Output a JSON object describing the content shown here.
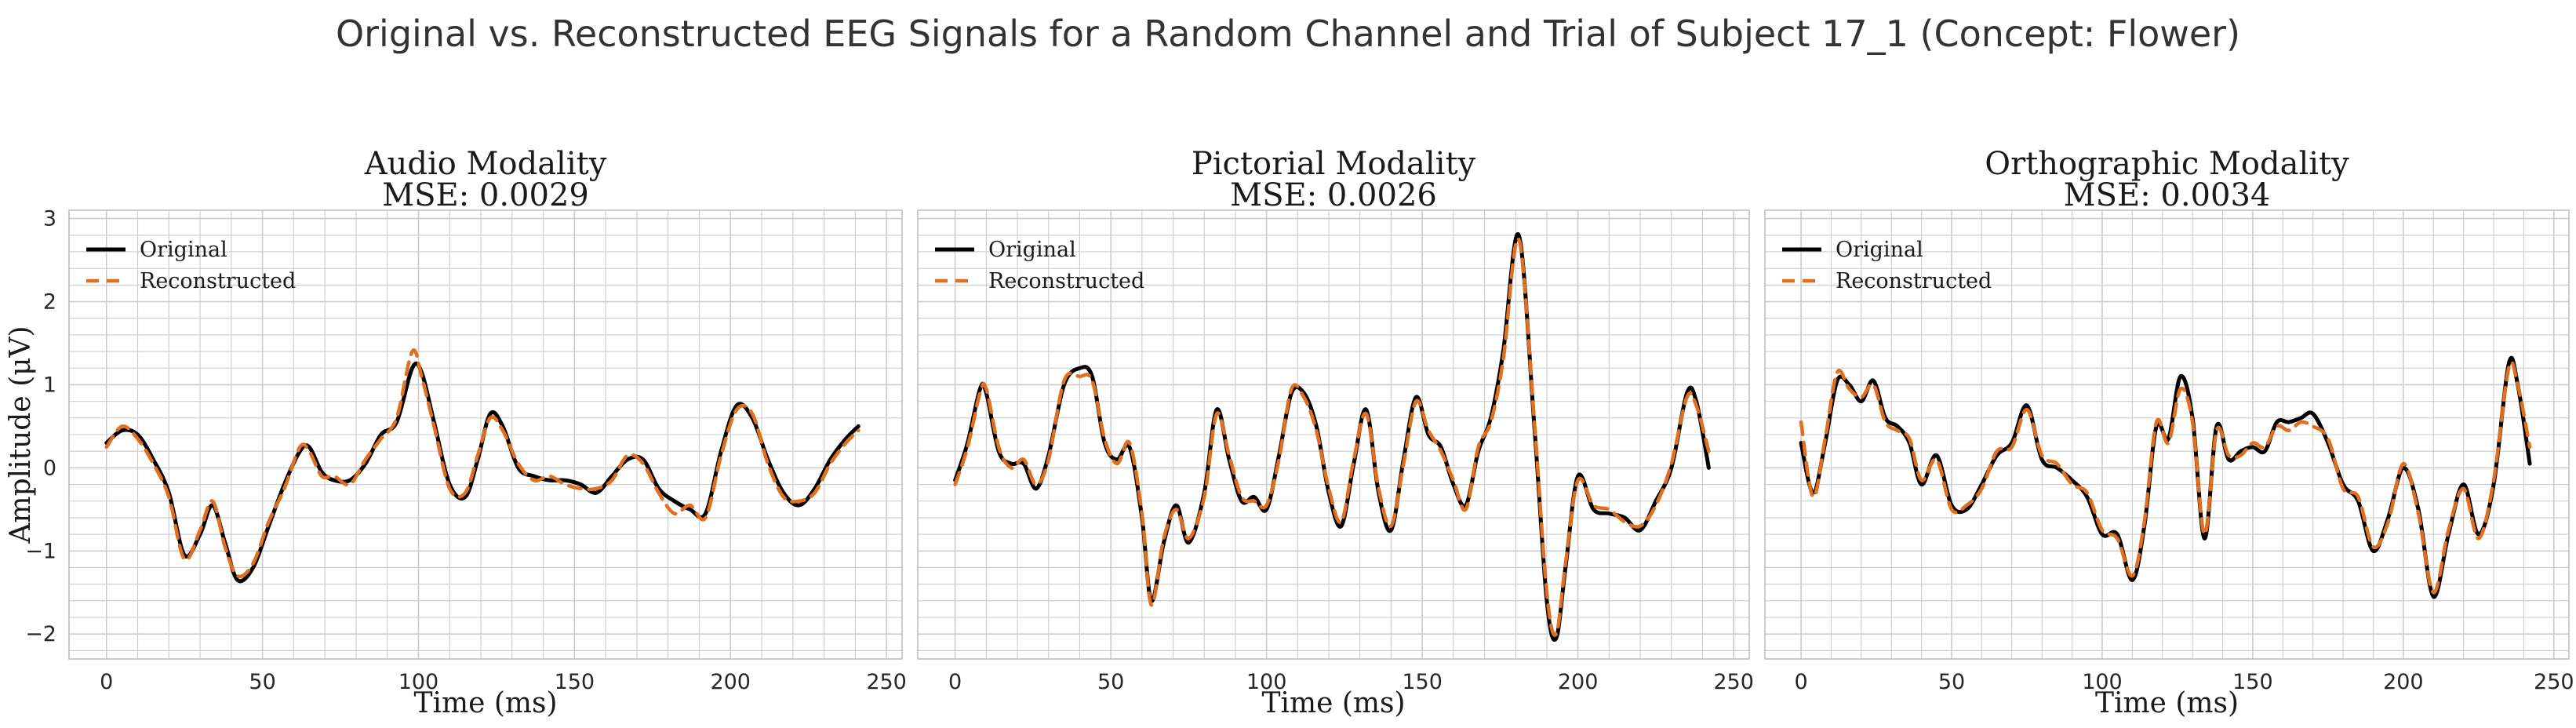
{
  "suptitle": "Original vs. Reconstructed EEG Signals for a Random Channel and Trial of Subject 17_1 (Concept: Flower)",
  "colors": {
    "original": "#000000",
    "reconstructed": "#E07020",
    "grid": "#cccccc",
    "spine": "#bbbbbb",
    "background": "#ffffff"
  },
  "chart_data": [
    {
      "type": "line",
      "title": "Audio Modality",
      "subtitle": "MSE: 0.0029",
      "xlabel": "Time (ms)",
      "ylabel": "Amplitude (μV)",
      "xlim": [
        -12,
        255
      ],
      "ylim": [
        -2.3,
        3.1
      ],
      "xticks": [
        0,
        50,
        100,
        150,
        200,
        250
      ],
      "yticks": [
        -2,
        -1,
        0,
        1,
        2,
        3
      ],
      "ytick_labels": [
        "−2",
        "−1",
        "0",
        "1",
        "2",
        "3"
      ],
      "grid": true,
      "legend": {
        "position": "upper-left",
        "entries": [
          "Original",
          "Reconstructed"
        ]
      },
      "x": [
        0,
        5,
        10,
        15,
        20,
        25,
        30,
        34,
        38,
        42,
        47,
        52,
        57,
        62,
        65,
        69,
        73,
        78,
        83,
        88,
        93,
        98,
        101,
        105,
        110,
        115,
        119,
        123,
        127,
        132,
        137,
        142,
        147,
        152,
        157,
        162,
        167,
        172,
        177,
        182,
        187,
        192,
        197,
        202,
        207,
        212,
        217,
        222,
        227,
        232,
        237,
        241
      ],
      "series": [
        {
          "name": "Original",
          "style": "solid",
          "values": [
            0.3,
            0.45,
            0.4,
            0.1,
            -0.3,
            -1.05,
            -0.8,
            -0.45,
            -0.9,
            -1.35,
            -1.2,
            -0.7,
            -0.2,
            0.2,
            0.25,
            -0.05,
            -0.15,
            -0.15,
            0.05,
            0.4,
            0.55,
            1.2,
            1.15,
            0.55,
            -0.2,
            -0.35,
            0.1,
            0.65,
            0.5,
            0.0,
            -0.1,
            -0.15,
            -0.15,
            -0.2,
            -0.3,
            -0.1,
            0.1,
            0.1,
            -0.25,
            -0.4,
            -0.5,
            -0.55,
            0.2,
            0.75,
            0.6,
            0.1,
            -0.3,
            -0.45,
            -0.25,
            0.1,
            0.35,
            0.5
          ]
        },
        {
          "name": "Reconstructed",
          "style": "dashed",
          "values": [
            0.25,
            0.5,
            0.35,
            0.05,
            -0.35,
            -1.1,
            -0.75,
            -0.4,
            -0.95,
            -1.3,
            -1.15,
            -0.65,
            -0.25,
            0.25,
            0.2,
            -0.1,
            -0.1,
            -0.2,
            0.1,
            0.35,
            0.6,
            1.4,
            1.1,
            0.5,
            -0.25,
            -0.3,
            0.15,
            0.6,
            0.45,
            0.05,
            -0.15,
            -0.1,
            -0.2,
            -0.25,
            -0.25,
            -0.15,
            0.15,
            0.05,
            -0.3,
            -0.55,
            -0.45,
            -0.6,
            0.15,
            0.7,
            0.65,
            0.05,
            -0.35,
            -0.4,
            -0.3,
            0.05,
            0.3,
            0.45
          ]
        }
      ]
    },
    {
      "type": "line",
      "title": "Pictorial Modality",
      "subtitle": "MSE: 0.0026",
      "xlabel": "Time (ms)",
      "ylabel": "",
      "xlim": [
        -12,
        255
      ],
      "ylim": [
        -2.3,
        3.1
      ],
      "xticks": [
        0,
        50,
        100,
        150,
        200,
        250
      ],
      "yticks": [
        -2,
        -1,
        0,
        1,
        2,
        3
      ],
      "grid": true,
      "legend": {
        "position": "upper-left",
        "entries": [
          "Original",
          "Reconstructed"
        ]
      },
      "x": [
        0,
        4,
        8,
        10,
        14,
        18,
        22,
        26,
        30,
        35,
        40,
        44,
        48,
        52,
        56,
        60,
        63,
        67,
        71,
        75,
        80,
        84,
        88,
        92,
        96,
        100,
        104,
        108,
        112,
        116,
        120,
        124,
        128,
        132,
        136,
        140,
        144,
        148,
        152,
        156,
        160,
        164,
        168,
        172,
        176,
        181,
        186,
        190,
        193,
        196,
        200,
        205,
        210,
        215,
        220,
        225,
        230,
        235,
        238,
        242
      ],
      "series": [
        {
          "name": "Original",
          "style": "solid",
          "values": [
            -0.15,
            0.3,
            0.95,
            0.9,
            0.2,
            0.05,
            0.05,
            -0.25,
            0.15,
            1.0,
            1.2,
            1.1,
            0.3,
            0.1,
            0.25,
            -0.6,
            -1.6,
            -0.9,
            -0.45,
            -0.9,
            -0.3,
            0.7,
            0.1,
            -0.4,
            -0.35,
            -0.5,
            0.15,
            0.9,
            0.9,
            0.5,
            -0.3,
            -0.7,
            0.05,
            0.7,
            -0.3,
            -0.75,
            0.1,
            0.85,
            0.4,
            0.25,
            -0.2,
            -0.45,
            0.2,
            0.6,
            1.4,
            2.8,
            0.5,
            -1.6,
            -2.05,
            -1.2,
            -0.1,
            -0.5,
            -0.55,
            -0.6,
            -0.75,
            -0.4,
            0.0,
            0.9,
            0.8,
            0.0
          ]
        },
        {
          "name": "Reconstructed",
          "style": "dashed",
          "values": [
            -0.2,
            0.25,
            0.9,
            0.95,
            0.25,
            0.0,
            0.1,
            -0.2,
            0.1,
            1.05,
            1.1,
            1.05,
            0.35,
            0.05,
            0.3,
            -0.55,
            -1.65,
            -0.85,
            -0.5,
            -0.85,
            -0.35,
            0.65,
            0.15,
            -0.35,
            -0.4,
            -0.45,
            0.1,
            0.95,
            0.85,
            0.45,
            -0.25,
            -0.65,
            0.1,
            0.65,
            -0.25,
            -0.7,
            0.05,
            0.8,
            0.45,
            0.2,
            -0.15,
            -0.5,
            0.25,
            0.55,
            1.3,
            2.75,
            0.55,
            -1.5,
            -2.0,
            -1.15,
            -0.15,
            -0.45,
            -0.5,
            -0.65,
            -0.7,
            -0.45,
            0.05,
            0.85,
            0.75,
            0.2
          ]
        }
      ]
    },
    {
      "type": "line",
      "title": "Orthographic Modality",
      "subtitle": "MSE: 0.0034",
      "xlabel": "Time (ms)",
      "ylabel": "",
      "xlim": [
        -12,
        255
      ],
      "ylim": [
        -2.3,
        3.1
      ],
      "xticks": [
        0,
        50,
        100,
        150,
        200,
        250
      ],
      "yticks": [
        -2,
        -1,
        0,
        1,
        2,
        3
      ],
      "grid": true,
      "legend": {
        "position": "upper-left",
        "entries": [
          "Original",
          "Reconstructed"
        ]
      },
      "x": [
        0,
        4,
        8,
        12,
        16,
        20,
        24,
        28,
        32,
        36,
        40,
        45,
        50,
        55,
        60,
        65,
        70,
        75,
        80,
        85,
        90,
        95,
        100,
        105,
        110,
        114,
        118,
        122,
        126,
        130,
        134,
        138,
        142,
        146,
        150,
        154,
        158,
        162,
        166,
        170,
        175,
        180,
        185,
        190,
        195,
        200,
        205,
        210,
        215,
        220,
        225,
        230,
        235,
        238,
        242
      ],
      "series": [
        {
          "name": "Original",
          "style": "solid",
          "values": [
            0.3,
            -0.3,
            0.3,
            1.05,
            1.0,
            0.8,
            1.05,
            0.6,
            0.5,
            0.3,
            -0.2,
            0.15,
            -0.45,
            -0.5,
            -0.2,
            0.15,
            0.3,
            0.75,
            0.1,
            0.0,
            -0.15,
            -0.35,
            -0.8,
            -0.8,
            -1.35,
            -0.7,
            0.5,
            0.35,
            1.1,
            0.6,
            -0.85,
            0.5,
            0.1,
            0.2,
            0.25,
            0.2,
            0.55,
            0.55,
            0.6,
            0.65,
            0.3,
            -0.2,
            -0.4,
            -1.0,
            -0.6,
            0.0,
            -0.5,
            -1.55,
            -0.8,
            -0.2,
            -0.8,
            -0.2,
            1.25,
            1.0,
            0.05
          ]
        },
        {
          "name": "Reconstructed",
          "style": "dashed",
          "values": [
            0.55,
            -0.35,
            0.35,
            1.15,
            0.95,
            0.85,
            1.0,
            0.55,
            0.45,
            0.35,
            -0.15,
            0.1,
            -0.5,
            -0.45,
            -0.25,
            0.2,
            0.25,
            0.7,
            0.15,
            0.05,
            -0.2,
            -0.3,
            -0.75,
            -0.85,
            -1.3,
            -0.65,
            0.55,
            0.3,
            0.95,
            0.55,
            -0.8,
            0.45,
            0.15,
            0.15,
            0.3,
            0.25,
            0.5,
            0.45,
            0.55,
            0.5,
            0.35,
            -0.25,
            -0.35,
            -0.95,
            -0.65,
            0.05,
            -0.55,
            -1.5,
            -0.75,
            -0.25,
            -0.85,
            -0.15,
            1.2,
            1.0,
            0.25
          ]
        }
      ]
    }
  ]
}
